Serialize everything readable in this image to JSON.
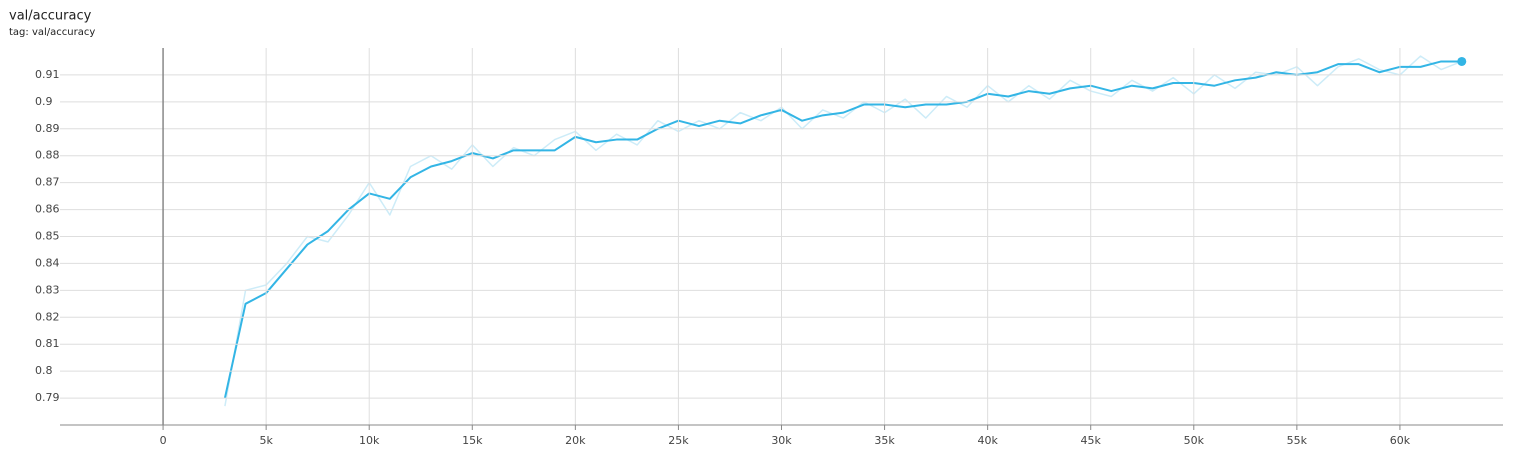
{
  "chart_data": {
    "type": "line",
    "title": "val/accuracy",
    "subtitle": "tag: val/accuracy",
    "x": [
      3000,
      4000,
      5000,
      6000,
      7000,
      8000,
      9000,
      10000,
      11000,
      12000,
      13000,
      14000,
      15000,
      16000,
      17000,
      18000,
      19000,
      20000,
      21000,
      22000,
      23000,
      24000,
      25000,
      26000,
      27000,
      28000,
      29000,
      30000,
      31000,
      32000,
      33000,
      34000,
      35000,
      36000,
      37000,
      38000,
      39000,
      40000,
      41000,
      42000,
      43000,
      44000,
      45000,
      46000,
      47000,
      48000,
      49000,
      50000,
      51000,
      52000,
      53000,
      54000,
      55000,
      56000,
      57000,
      58000,
      59000,
      60000,
      61000,
      62000,
      63000
    ],
    "series": [
      {
        "color": "#cdecf8",
        "values": [
          0.787,
          0.83,
          0.832,
          0.84,
          0.85,
          0.848,
          0.858,
          0.87,
          0.858,
          0.876,
          0.88,
          0.875,
          0.884,
          0.876,
          0.883,
          0.88,
          0.886,
          0.889,
          0.882,
          0.888,
          0.884,
          0.893,
          0.889,
          0.893,
          0.89,
          0.896,
          0.893,
          0.898,
          0.89,
          0.897,
          0.894,
          0.9,
          0.896,
          0.901,
          0.894,
          0.902,
          0.898,
          0.906,
          0.9,
          0.906,
          0.901,
          0.908,
          0.904,
          0.902,
          0.908,
          0.904,
          0.909,
          0.903,
          0.91,
          0.905,
          0.911,
          0.91,
          0.913,
          0.906,
          0.913,
          0.916,
          0.912,
          0.91,
          0.917,
          0.912,
          0.915
        ]
      },
      {
        "color": "#33b5e5",
        "values": [
          0.79,
          0.825,
          0.829,
          0.838,
          0.847,
          0.852,
          0.86,
          0.866,
          0.864,
          0.872,
          0.876,
          0.878,
          0.881,
          0.879,
          0.882,
          0.882,
          0.882,
          0.887,
          0.885,
          0.886,
          0.886,
          0.89,
          0.893,
          0.891,
          0.893,
          0.892,
          0.895,
          0.897,
          0.893,
          0.895,
          0.896,
          0.899,
          0.899,
          0.898,
          0.899,
          0.899,
          0.9,
          0.903,
          0.902,
          0.904,
          0.903,
          0.905,
          0.906,
          0.904,
          0.906,
          0.905,
          0.907,
          0.907,
          0.906,
          0.908,
          0.909,
          0.911,
          0.91,
          0.911,
          0.914,
          0.914,
          0.911,
          0.913,
          0.913,
          0.915,
          0.915
        ]
      }
    ],
    "xlim": [
      -5000,
      65000
    ],
    "xticks": [
      0,
      {
        "value": 5000,
        "label": "5k"
      },
      {
        "value": 10000,
        "label": "10k"
      },
      {
        "value": 15000,
        "label": "15k"
      },
      {
        "value": 20000,
        "label": "20k"
      },
      {
        "value": 25000,
        "label": "25k"
      },
      {
        "value": 30000,
        "label": "30k"
      },
      {
        "value": 35000,
        "label": "35k"
      },
      {
        "value": 40000,
        "label": "40k"
      },
      {
        "value": 45000,
        "label": "45k"
      },
      {
        "value": 50000,
        "label": "50k"
      },
      {
        "value": 55000,
        "label": "55k"
      },
      {
        "value": 60000,
        "label": "60k"
      }
    ],
    "ylim": [
      0.78,
      0.92
    ],
    "yticks": [
      0.79,
      0.8,
      0.81,
      0.82,
      0.83,
      0.84,
      0.85,
      0.86,
      0.87,
      0.88,
      0.89,
      0.9,
      0.91
    ],
    "grid": true
  }
}
